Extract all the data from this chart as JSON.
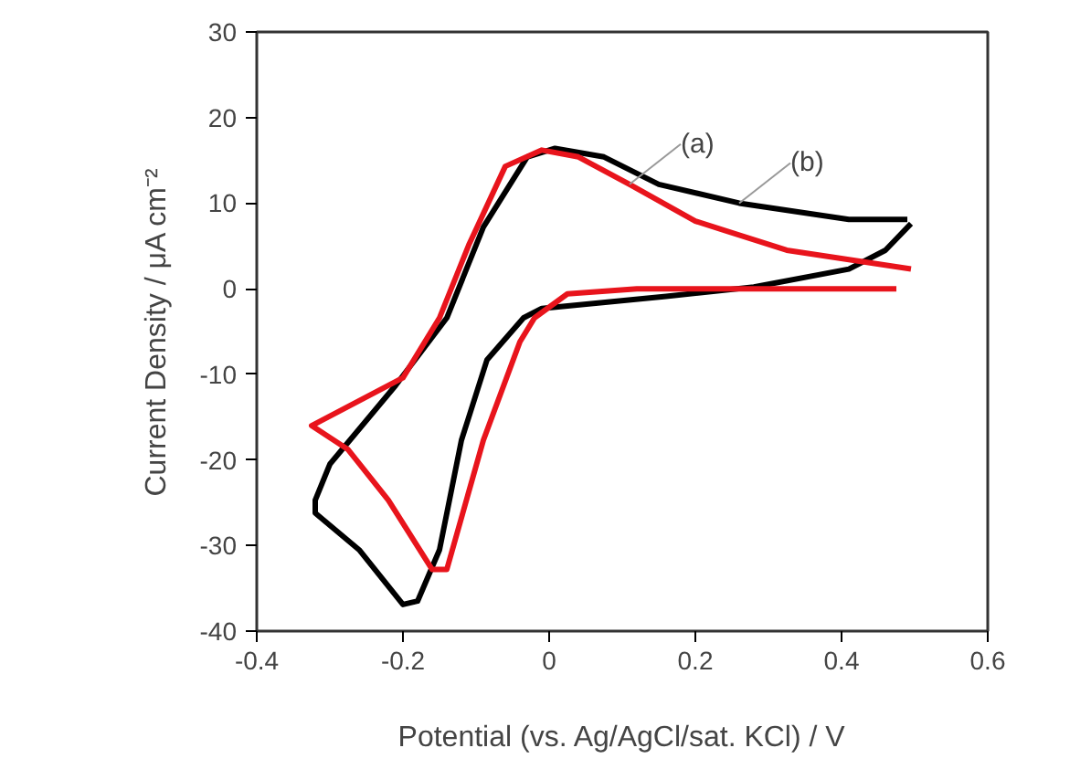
{
  "chart_data": {
    "type": "line",
    "xlabel": "Potential (vs. Ag/AgCl/sat. KCl) / V",
    "ylabel": "Current Density / μA cm⁻²",
    "xlim": [
      -0.4,
      0.6
    ],
    "xticks": [
      -0.4,
      -0.2,
      0,
      0.2,
      0.4,
      0.6
    ],
    "ylim": [
      -40,
      30
    ],
    "yticks": [
      -40,
      -30,
      -20,
      -10,
      0,
      10,
      20,
      30
    ],
    "grid": false,
    "marker": "none",
    "line_style": "solid",
    "series": [
      {
        "color": "#000000",
        "x": [
          0.49,
          0.41,
          0.26,
          0.15,
          0.075,
          0.008,
          -0.03,
          -0.09,
          -0.14,
          -0.21,
          -0.3,
          -0.32,
          -0.32,
          -0.26,
          -0.2,
          -0.18,
          -0.15,
          -0.12,
          -0.085,
          -0.035,
          -0.01,
          0.16,
          0.28,
          0.41,
          0.46,
          0.495
        ],
        "values": [
          8.1,
          8.1,
          10,
          12.2,
          15.4,
          16.4,
          15.4,
          7.2,
          -3.4,
          -11.3,
          -20.5,
          -24.7,
          -26.2,
          -30.5,
          -36.9,
          -36.5,
          -30.5,
          -17.7,
          -8.3,
          -3.4,
          -2.3,
          -0.9,
          0.2,
          2.3,
          4.5,
          7.6
        ]
      },
      {
        "color": "#e8141c",
        "x": [
          0.495,
          0.325,
          0.2,
          0.11,
          0.04,
          -0.01,
          -0.06,
          -0.11,
          -0.15,
          -0.2,
          -0.325,
          -0.275,
          -0.22,
          -0.16,
          -0.14,
          -0.09,
          -0.04,
          -0.02,
          0.025,
          0.12,
          0.475
        ],
        "values": [
          2.3,
          4.5,
          7.9,
          12.2,
          15.4,
          16.2,
          14.3,
          5.1,
          -3.4,
          -10.4,
          -16,
          -18.8,
          -24.7,
          -32.8,
          -32.8,
          -17.7,
          -6.2,
          -3.4,
          -0.6,
          0,
          0
        ]
      }
    ],
    "annotations": [
      {
        "text": "(a)",
        "x": 0.11,
        "y": 12.2
      },
      {
        "text": "(b)",
        "x": 0.26,
        "y": 10
      }
    ]
  }
}
